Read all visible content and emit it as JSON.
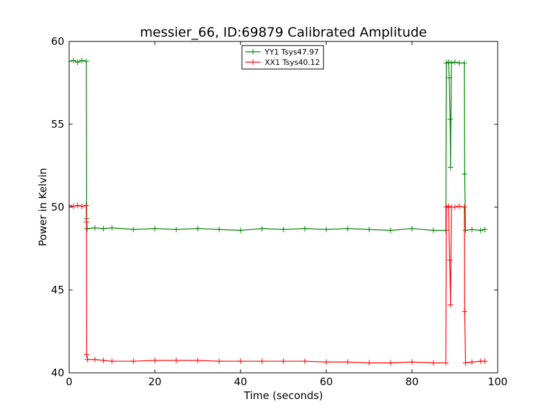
{
  "chart_data": {
    "type": "line",
    "title": "messier_66, ID:69879 Calibrated Amplitude",
    "xlabel": "Time (seconds)",
    "ylabel": "Power in Kelvin",
    "xlim": [
      0,
      100
    ],
    "ylim": [
      40,
      60
    ],
    "xticks": [
      "0",
      "20",
      "40",
      "60",
      "80",
      "100"
    ],
    "yticks": [
      "40",
      "45",
      "50",
      "55",
      "60"
    ],
    "xtick_values": [
      0,
      20,
      40,
      60,
      80,
      100
    ],
    "ytick_values": [
      40,
      45,
      50,
      55,
      60
    ],
    "grid": false,
    "legend_position": "top-center",
    "series": [
      {
        "name": "YY1 Tsys47.97",
        "color": "#008000",
        "marker": "plus",
        "points": [
          [
            0,
            58.8
          ],
          [
            1,
            58.85
          ],
          [
            2,
            58.75
          ],
          [
            3,
            58.85
          ],
          [
            4,
            58.8
          ],
          [
            4.1,
            49.3
          ],
          [
            4.2,
            48.7
          ],
          [
            6,
            48.75
          ],
          [
            8,
            48.7
          ],
          [
            10,
            48.75
          ],
          [
            15,
            48.65
          ],
          [
            20,
            48.7
          ],
          [
            25,
            48.65
          ],
          [
            30,
            48.7
          ],
          [
            35,
            48.65
          ],
          [
            40,
            48.6
          ],
          [
            45,
            48.7
          ],
          [
            50,
            48.65
          ],
          [
            55,
            48.7
          ],
          [
            60,
            48.65
          ],
          [
            65,
            48.7
          ],
          [
            70,
            48.65
          ],
          [
            75,
            48.6
          ],
          [
            80,
            48.7
          ],
          [
            85,
            48.6
          ],
          [
            87.9,
            48.6
          ],
          [
            88.0,
            58.7
          ],
          [
            88.5,
            58.75
          ],
          [
            88.7,
            57.8
          ],
          [
            88.9,
            55.3
          ],
          [
            89.0,
            52.4
          ],
          [
            89.2,
            58.7
          ],
          [
            90,
            58.75
          ],
          [
            91,
            58.7
          ],
          [
            92.2,
            58.7
          ],
          [
            92.3,
            52.0
          ],
          [
            92.5,
            48.6
          ],
          [
            94,
            48.65
          ],
          [
            96,
            48.6
          ],
          [
            97,
            48.65
          ]
        ]
      },
      {
        "name": "XX1 Tsys40.12",
        "color": "#ff0000",
        "marker": "plus",
        "points": [
          [
            0,
            50.1
          ],
          [
            1,
            50.05
          ],
          [
            2,
            50.1
          ],
          [
            3,
            50.05
          ],
          [
            4,
            50.1
          ],
          [
            4.05,
            49.1
          ],
          [
            4.1,
            41.1
          ],
          [
            4.3,
            40.8
          ],
          [
            6,
            40.8
          ],
          [
            8,
            40.75
          ],
          [
            10,
            40.7
          ],
          [
            15,
            40.7
          ],
          [
            20,
            40.75
          ],
          [
            25,
            40.75
          ],
          [
            30,
            40.75
          ],
          [
            35,
            40.7
          ],
          [
            40,
            40.7
          ],
          [
            45,
            40.7
          ],
          [
            50,
            40.7
          ],
          [
            55,
            40.7
          ],
          [
            60,
            40.65
          ],
          [
            65,
            40.65
          ],
          [
            70,
            40.6
          ],
          [
            75,
            40.6
          ],
          [
            80,
            40.65
          ],
          [
            85,
            40.6
          ],
          [
            87.9,
            40.6
          ],
          [
            88.0,
            50.0
          ],
          [
            88.5,
            50.05
          ],
          [
            88.8,
            46.8
          ],
          [
            89.0,
            44.1
          ],
          [
            89.2,
            50.0
          ],
          [
            90,
            50.0
          ],
          [
            91,
            50.05
          ],
          [
            92.2,
            50.0
          ],
          [
            92.3,
            43.7
          ],
          [
            92.5,
            40.6
          ],
          [
            94,
            40.65
          ],
          [
            96,
            40.7
          ],
          [
            97,
            40.7
          ]
        ]
      }
    ]
  }
}
